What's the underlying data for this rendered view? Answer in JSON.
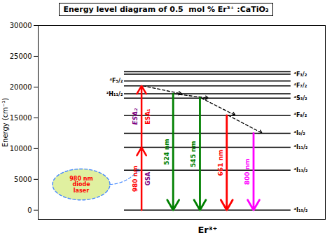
{
  "chart_data": {
    "type": "energy_level",
    "title": "Energy level diagram of 0.5  mol % Er³⁺ :CaTiO₃",
    "ylabel": "Energy (cm⁻¹)",
    "xlabel": "Er³⁺",
    "ylim": [
      -1500,
      30000
    ],
    "yticks": [
      0,
      5000,
      10000,
      15000,
      20000,
      25000,
      30000
    ],
    "grid": false,
    "tick_labels": "y",
    "color": "black",
    "levels": [
      {
        "energy": 0,
        "label": "⁴I₁₅/₂"
      },
      {
        "energy": 6500,
        "label": "⁴I₁₃/₂"
      },
      {
        "energy": 10200,
        "label": "⁴I₁₁/₂"
      },
      {
        "energy": 12500,
        "label": "⁴I₉/₂"
      },
      {
        "energy": 15400,
        "label": "⁴F₉/₂"
      },
      {
        "energy": 18200,
        "label": "⁴S₃/₂"
      },
      {
        "energy": 18900,
        "label": "²H₁₁/₂"
      },
      {
        "energy": 20200,
        "label": "⁴F₇/₂"
      },
      {
        "energy": 21000,
        "label": "⁴F₅/₂"
      },
      {
        "energy": 22100,
        "label": "⁴F₃/₂"
      },
      {
        "energy": 22500
      }
    ],
    "pump": {
      "label": {
        "text": "980 nm",
        "color": "red"
      },
      "steps": [
        {
          "from": 0,
          "to": 10200,
          "color": "red",
          "label": {
            "text": "GSA",
            "color": "purple"
          }
        },
        {
          "from": 10200,
          "to": 20200,
          "color": "red",
          "label": {
            "text": "ESA₁",
            "color": "red"
          }
        }
      ],
      "notes": [
        {
          "text": "ESA₂",
          "color": "purple"
        }
      ]
    },
    "emissions": [
      {
        "from": 18900,
        "to": 0,
        "color": "green",
        "label": "524 nm"
      },
      {
        "from": 18200,
        "to": 0,
        "color": "green",
        "label": "545 nm"
      },
      {
        "from": 15400,
        "to": 0,
        "color": "red",
        "label": "661 nm"
      },
      {
        "from": 12500,
        "to": 0,
        "color": "magenta",
        "label": "800 nm"
      }
    ],
    "relaxations": {
      "color": "black",
      "line_style": "dashed",
      "steps": [
        {
          "from": 20200,
          "to": 18900
        },
        {
          "from": 18900,
          "to": 18200
        },
        {
          "from": 18200,
          "to": 15400
        },
        {
          "from": 15400,
          "to": 12500
        }
      ]
    },
    "laser": {
      "label": {
        "text": "980 nm\ndiode\nlaser",
        "color": "red"
      },
      "color": "#e0f0a0",
      "link": {
        "color": "#4488ff",
        "line_style": "dashed"
      }
    }
  }
}
